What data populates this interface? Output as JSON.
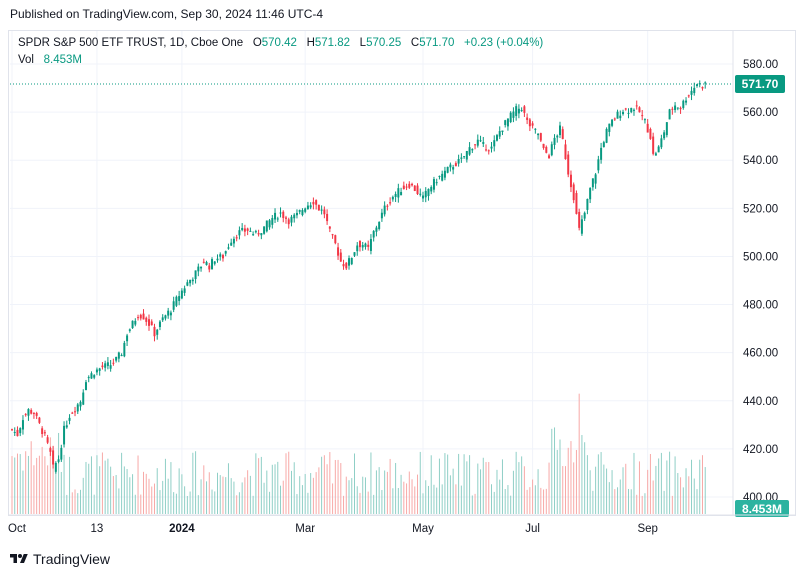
{
  "published": "Published on TradingView.com, Sep 30, 2024 11:46 UTC-4",
  "legend": {
    "symbol": "SPDR S&P 500 ETF TRUST, 1D, Cboe One",
    "open_label": "O",
    "open": "570.42",
    "high_label": "H",
    "high": "571.82",
    "low_label": "L",
    "low": "570.25",
    "close_label": "C",
    "close": "571.70",
    "change": "+0.23 (+0.04%)",
    "vol_label": "Vol",
    "vol": "8.453M"
  },
  "footer": {
    "brand": "TradingView"
  },
  "colors": {
    "up": "#089981",
    "down": "#f23645",
    "up_vol": "#8fcfc6",
    "down_vol": "#f7a9a7",
    "grid": "#f0f3fa",
    "last_price_line": "#089981"
  },
  "chart_data": {
    "type": "candlestick",
    "title": "SPDR S&P 500 ETF TRUST, 1D, Cboe One",
    "xlabel": "",
    "ylabel": "",
    "x_ticks": [
      "Oct",
      "13",
      "2024",
      "Mar",
      "May",
      "Jul",
      "Sep"
    ],
    "y_ticks": [
      400,
      420,
      440,
      460,
      480,
      500,
      520,
      540,
      560,
      580
    ],
    "y_tick_labels": [
      "400.00",
      "420.00",
      "440.00",
      "460.00",
      "480.00",
      "500.00",
      "520.00",
      "540.00",
      "560.00",
      "580.00"
    ],
    "ylim": [
      395,
      590
    ],
    "last_price": 571.7,
    "last_price_label": "571.70",
    "last_volume_label": "8.453M",
    "grid": true,
    "close_anchors": [
      [
        0,
        428
      ],
      [
        2,
        426
      ],
      [
        4,
        433
      ],
      [
        6,
        436
      ],
      [
        8,
        435
      ],
      [
        10,
        430
      ],
      [
        12,
        425
      ],
      [
        14,
        418
      ],
      [
        15,
        412
      ],
      [
        17,
        416
      ],
      [
        19,
        428
      ],
      [
        21,
        434
      ],
      [
        23,
        437
      ],
      [
        25,
        440
      ],
      [
        27,
        449
      ],
      [
        30,
        452
      ],
      [
        33,
        454
      ],
      [
        36,
        455
      ],
      [
        38,
        457
      ],
      [
        40,
        460
      ],
      [
        42,
        468
      ],
      [
        44,
        472
      ],
      [
        46,
        476
      ],
      [
        48,
        475
      ],
      [
        50,
        472
      ],
      [
        52,
        468
      ],
      [
        55,
        474
      ],
      [
        58,
        478
      ],
      [
        61,
        484
      ],
      [
        64,
        489
      ],
      [
        67,
        493
      ],
      [
        70,
        498
      ],
      [
        72,
        496
      ],
      [
        74,
        499
      ],
      [
        77,
        500
      ],
      [
        80,
        507
      ],
      [
        83,
        510
      ],
      [
        86,
        511
      ],
      [
        89,
        509
      ],
      [
        92,
        512
      ],
      [
        95,
        516
      ],
      [
        98,
        518
      ],
      [
        101,
        515
      ],
      [
        104,
        517
      ],
      [
        107,
        521
      ],
      [
        110,
        523
      ],
      [
        112,
        520
      ],
      [
        114,
        518
      ],
      [
        116,
        510
      ],
      [
        118,
        505
      ],
      [
        120,
        498
      ],
      [
        122,
        496
      ],
      [
        124,
        500
      ],
      [
        126,
        505
      ],
      [
        128,
        505
      ],
      [
        130,
        503
      ],
      [
        132,
        510
      ],
      [
        134,
        515
      ],
      [
        136,
        520
      ],
      [
        139,
        525
      ],
      [
        142,
        528
      ],
      [
        145,
        530
      ],
      [
        147,
        528
      ],
      [
        150,
        524
      ],
      [
        152,
        528
      ],
      [
        155,
        532
      ],
      [
        158,
        535
      ],
      [
        161,
        538
      ],
      [
        164,
        540
      ],
      [
        167,
        545
      ],
      [
        170,
        548
      ],
      [
        172,
        546
      ],
      [
        175,
        545
      ],
      [
        178,
        552
      ],
      [
        181,
        557
      ],
      [
        184,
        561
      ],
      [
        186,
        562
      ],
      [
        188,
        556
      ],
      [
        190,
        553
      ],
      [
        192,
        551
      ],
      [
        194,
        544
      ],
      [
        196,
        542
      ],
      [
        198,
        549
      ],
      [
        200,
        553
      ],
      [
        201,
        548
      ],
      [
        203,
        535
      ],
      [
        205,
        525
      ],
      [
        206,
        517
      ],
      [
        207,
        511
      ],
      [
        209,
        518
      ],
      [
        211,
        528
      ],
      [
        213,
        535
      ],
      [
        215,
        545
      ],
      [
        217,
        552
      ],
      [
        219,
        556
      ],
      [
        221,
        559
      ],
      [
        223,
        561
      ],
      [
        225,
        561
      ],
      [
        227,
        562
      ],
      [
        229,
        560
      ],
      [
        231,
        556
      ],
      [
        233,
        550
      ],
      [
        234,
        542
      ],
      [
        236,
        545
      ],
      [
        238,
        552
      ],
      [
        240,
        560
      ],
      [
        242,
        563
      ],
      [
        244,
        562
      ],
      [
        246,
        566
      ],
      [
        248,
        569
      ],
      [
        250,
        572
      ],
      [
        252,
        571
      ],
      [
        253,
        571.7
      ]
    ],
    "volume_unit": "M",
    "volume_note": "daily volume bars shown at bottom, last value 8.453M"
  }
}
